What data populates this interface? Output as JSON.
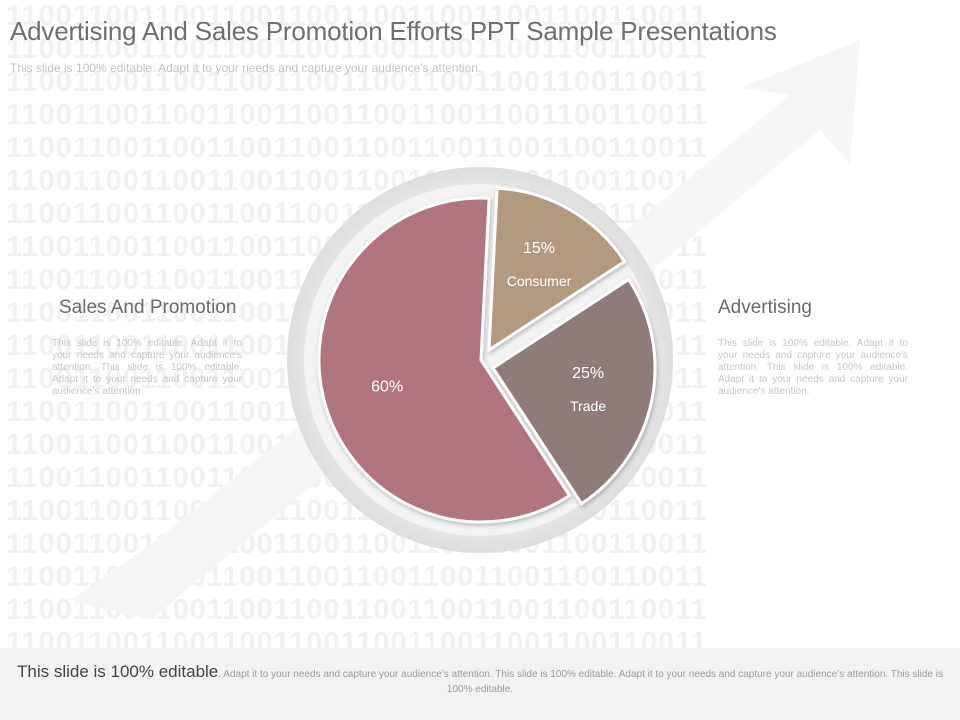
{
  "slide": {
    "title": "Advertising And Sales Promotion Efforts PPT Sample Presentations",
    "subtitle": "This slide is 100% editable. Adapt it to your needs and capture your audience's attention.",
    "background_pattern": "110011001100110011001100110011001100110011"
  },
  "left_panel": {
    "heading": "Sales And Promotion",
    "text": "This slide is 100% editable. Adapt it to your needs and capture your audience's attention. This slide is 100% editable. Adapt it to your needs and capture your audience's attention."
  },
  "right_panel": {
    "heading": "Advertising",
    "text": "This slide is 100% editable. Adapt it to your needs and capture your audience's attention. This slide is 100% editable. Adapt it to your needs and capture your audience's attention."
  },
  "chart_data": {
    "type": "pie",
    "slices": [
      {
        "label": "Consumer",
        "value": 15,
        "display": "15%",
        "color": "#b39a7f"
      },
      {
        "label": "Trade",
        "value": 25,
        "display": "25%",
        "color": "#8d7b79"
      },
      {
        "label": "",
        "value": 60,
        "display": "60%",
        "color": "#b0747e"
      }
    ]
  },
  "footer": {
    "lead": "This slide is 100% editable",
    "rest": ". Adapt it to your needs and capture your audience’s attention. This slide is 100% editable. Adapt it to your needs and capture your audience’s attention. This slide is 100% editable."
  }
}
